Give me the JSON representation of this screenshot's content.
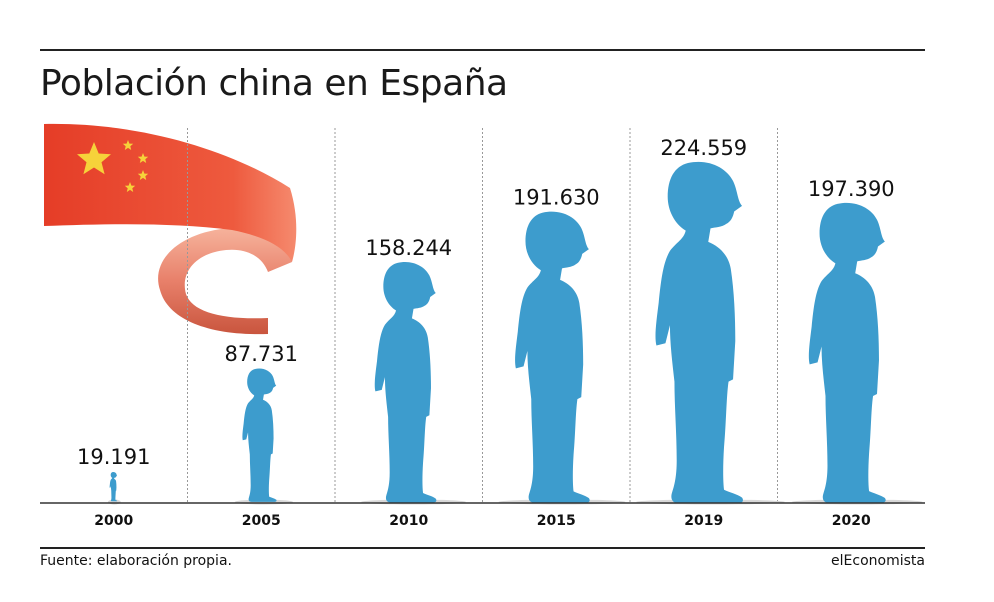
{
  "title": "Población china en España",
  "source": "Fuente: elaboración propia.",
  "brand": "elEconomista",
  "colors": {
    "figure": "#3d9ccd",
    "flag_red": "#e8452e",
    "ribbon_light": "#f3a98f",
    "ribbon_dark": "#c9553e",
    "star": "#f6d23a",
    "divider": "#999999",
    "axis": "#333333",
    "text": "#111111"
  },
  "icons": {
    "figure": "standing-person-silhouette",
    "flag": "china-flag-ribbon"
  },
  "chart_data": {
    "type": "bar",
    "title": "Población china en España",
    "categories": [
      "2000",
      "2005",
      "2010",
      "2015",
      "2019",
      "2020"
    ],
    "series": [
      {
        "name": "Población china",
        "values": [
          19191,
          87731,
          158244,
          191630,
          224559,
          197390
        ],
        "labels": [
          "19.191",
          "87.731",
          "158.244",
          "191.630",
          "224.559",
          "197.390"
        ]
      }
    ],
    "ylim": [
      0,
      224559
    ],
    "grid": false,
    "legend": "none",
    "xlabel": "",
    "ylabel": ""
  }
}
